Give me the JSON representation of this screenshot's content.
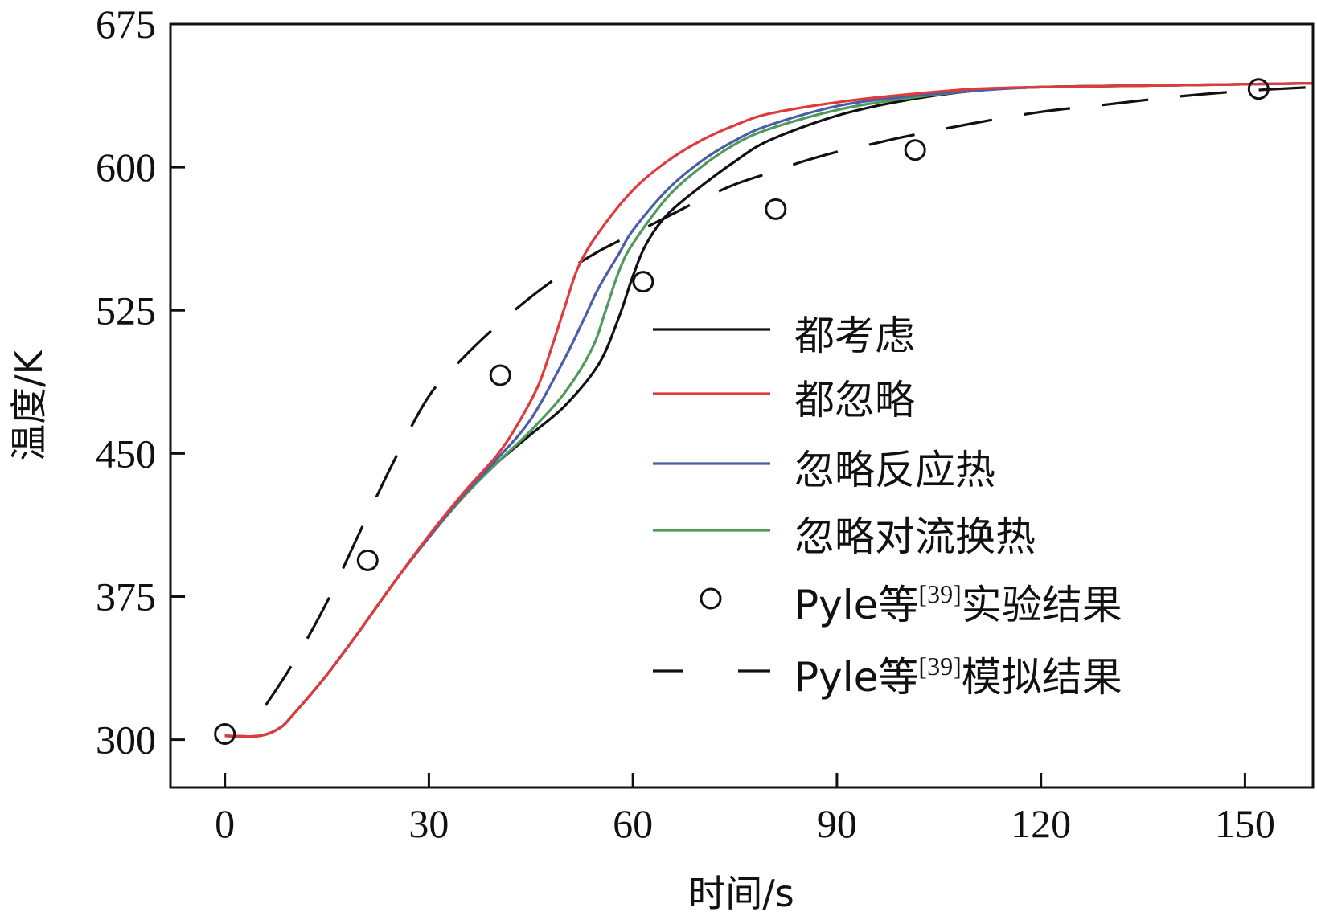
{
  "chart_data": {
    "type": "line",
    "title": "",
    "xlabel": "时间/s",
    "ylabel": "温度/K",
    "xlim": [
      -8,
      160
    ],
    "ylim": [
      275,
      675
    ],
    "xticks": [
      "0",
      "30",
      "60",
      "90",
      "120",
      "150"
    ],
    "yticks": [
      "300",
      "375",
      "450",
      "525",
      "600",
      "675"
    ],
    "grid": false,
    "legend_position": "center-right",
    "series": [
      {
        "name": "都考虑",
        "color": "#111111",
        "style": "solid",
        "x": [
          0,
          5,
          8,
          10,
          15,
          20,
          25,
          30,
          35,
          40,
          45,
          50,
          55,
          58,
          60,
          62,
          65,
          70,
          75,
          80,
          90,
          100,
          110,
          120,
          140,
          160
        ],
        "y": [
          302,
          302,
          306,
          313,
          334,
          358,
          383,
          406,
          427,
          445,
          460,
          475,
          497,
          522,
          543,
          560,
          575,
          590,
          603,
          614,
          627,
          635,
          640,
          642,
          643,
          644
        ]
      },
      {
        "name": "都忽略",
        "color": "#e03a3a",
        "style": "solid",
        "x": [
          0,
          5,
          8,
          10,
          15,
          20,
          25,
          30,
          35,
          40,
          43,
          46,
          48,
          50,
          52,
          55,
          60,
          65,
          70,
          75,
          80,
          90,
          100,
          110,
          120,
          140,
          160
        ],
        "y": [
          302,
          302,
          306,
          313,
          334,
          358,
          383,
          407,
          429,
          449,
          465,
          485,
          505,
          527,
          548,
          566,
          588,
          603,
          614,
          622,
          628,
          634,
          638,
          641,
          642,
          643,
          644
        ]
      },
      {
        "name": "忽略反应热",
        "color": "#4a5fa8",
        "style": "solid",
        "x": [
          0,
          5,
          8,
          10,
          15,
          20,
          25,
          30,
          35,
          40,
          45,
          50,
          53,
          55,
          58,
          60,
          65,
          70,
          75,
          80,
          90,
          100,
          110,
          120,
          140,
          160
        ],
        "y": [
          302,
          302,
          306,
          313,
          334,
          358,
          383,
          406,
          428,
          447,
          468,
          500,
          522,
          537,
          555,
          567,
          588,
          603,
          614,
          622,
          632,
          637,
          640,
          642,
          643,
          644
        ]
      },
      {
        "name": "忽略对流换热",
        "color": "#4f9a5a",
        "style": "solid",
        "x": [
          0,
          5,
          8,
          10,
          15,
          20,
          25,
          30,
          35,
          40,
          45,
          50,
          54,
          56,
          58,
          60,
          65,
          70,
          75,
          80,
          90,
          100,
          110,
          120,
          140,
          160
        ],
        "y": [
          302,
          302,
          306,
          313,
          334,
          358,
          383,
          406,
          427,
          445,
          462,
          482,
          505,
          525,
          546,
          560,
          584,
          600,
          612,
          620,
          630,
          636,
          640,
          642,
          643,
          644
        ]
      },
      {
        "name": "Pyle等[39]实验结果",
        "color": "#111111",
        "style": "markers",
        "x": [
          0,
          21,
          40.5,
          61.5,
          81,
          101.5,
          152
        ],
        "y": [
          303,
          394,
          491,
          540,
          578,
          609,
          641
        ]
      },
      {
        "name": "Pyle等[39]模拟结果",
        "color": "#111111",
        "style": "dashed",
        "x": [
          6,
          10,
          15,
          20,
          25,
          30,
          35,
          40,
          45,
          50,
          55,
          60,
          65,
          70,
          75,
          80,
          85,
          90,
          95,
          100,
          110,
          120,
          130,
          140,
          150,
          160
        ],
        "y": [
          318,
          340,
          372,
          410,
          447,
          480,
          500,
          517,
          532,
          545,
          556,
          565,
          574,
          583,
          591,
          597,
          603,
          608,
          612,
          616,
          623,
          629,
          633,
          637,
          640,
          642
        ]
      }
    ]
  }
}
